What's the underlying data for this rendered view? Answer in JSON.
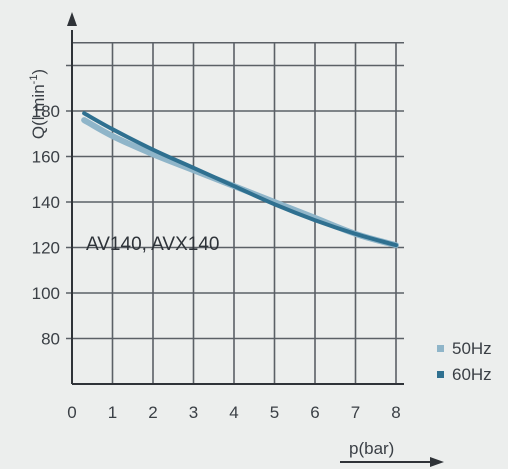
{
  "chart_data": {
    "type": "line",
    "xlabel": "p(bar)",
    "ylabel": "Q(l.min-1)",
    "xlim": [
      0,
      8
    ],
    "ylim": [
      60,
      220
    ],
    "x_ticks": [
      0,
      1,
      2,
      3,
      4,
      5,
      6,
      7,
      8
    ],
    "y_ticks": [
      80,
      100,
      120,
      140,
      160,
      180
    ],
    "grid": true,
    "annotation": "AV140, AVX140",
    "legend_position": "bottom-right",
    "series": [
      {
        "name": "50Hz",
        "color": "#8fb5c9",
        "x": [
          0.3,
          1,
          2,
          3,
          4,
          5,
          6,
          7,
          8
        ],
        "y": [
          176,
          169,
          161,
          154,
          147,
          140,
          133,
          126,
          121
        ]
      },
      {
        "name": "60Hz",
        "color": "#2f7090",
        "x": [
          0.3,
          1,
          2,
          3,
          4,
          5,
          6,
          7,
          8
        ],
        "y": [
          179,
          172,
          163,
          155,
          147,
          139,
          132,
          126,
          121
        ]
      }
    ]
  }
}
